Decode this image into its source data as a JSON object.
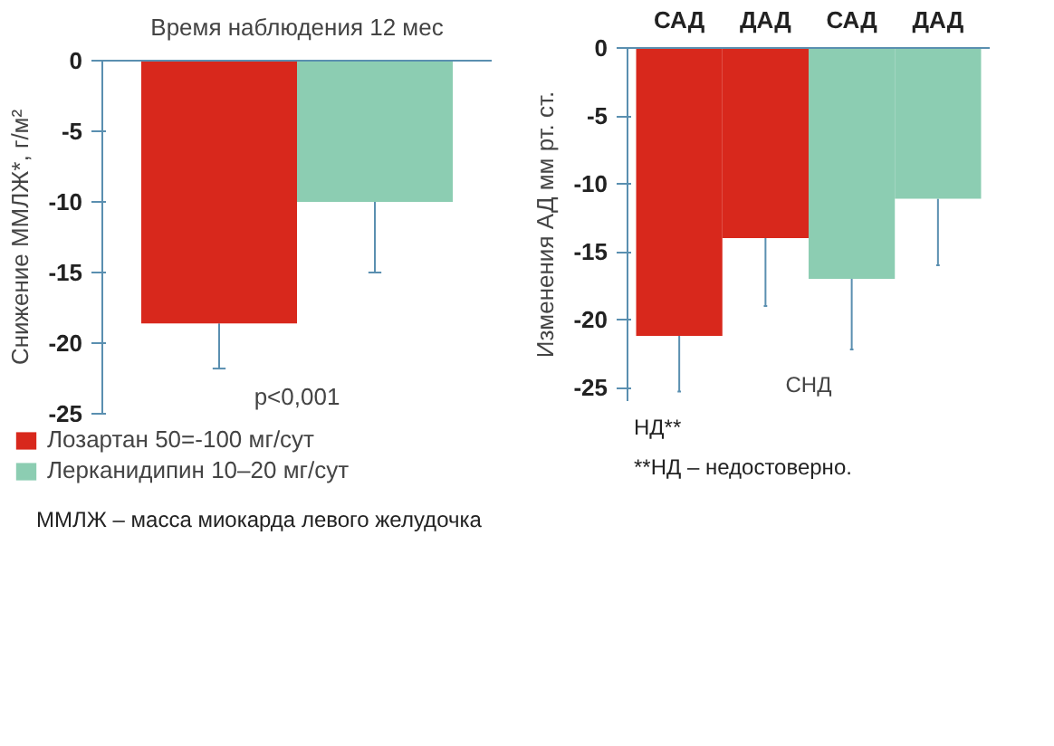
{
  "chart_data": [
    {
      "type": "bar",
      "title": "Время наблюдения 12 мес",
      "ylabel": "Снижение ММЛЖ*, г/м²",
      "categories": [
        null
      ],
      "series": [
        {
          "name": "Лозартан 50=-100 мг/сут",
          "color": "#d8281c",
          "values": [
            -18.6
          ],
          "errors": [
            [
              -21.8,
              -18.6
            ]
          ]
        },
        {
          "name": "Лерканидипин 10–20 мг/сут",
          "color": "#8ccdb2",
          "values": [
            -10
          ],
          "errors": [
            [
              -15,
              -10
            ]
          ]
        }
      ],
      "ylim": [
        -25,
        0
      ],
      "yticks": [
        -25,
        -20,
        -15,
        -10,
        -5,
        0
      ],
      "tick_labels": "y",
      "grid": false,
      "legend": "bottom",
      "annotations": [
        "p<0,001",
        "ММЛЖ – масса миокарда левого желудочка"
      ]
    },
    {
      "type": "bar",
      "ylabel": "Изменения АД мм рт. ст.",
      "categories": [
        "САД",
        "ДАД",
        "САД",
        "ДАД"
      ],
      "series": [
        {
          "color": "#d8281c",
          "values": [
            -21.2,
            -14,
            null,
            null
          ],
          "errors": [
            [
              -25.3,
              -21.2
            ],
            [
              -19,
              -14
            ],
            null,
            null
          ]
        },
        {
          "color": "#8ccdb2",
          "values": [
            null,
            null,
            -17,
            -11.1
          ],
          "errors": [
            null,
            null,
            [
              -22.2,
              -17
            ],
            [
              -16,
              -11.1
            ]
          ]
        }
      ],
      "ylim": [
        -26,
        0
      ],
      "yticks": [
        -25,
        -20,
        -15,
        -10,
        -5,
        0
      ],
      "grid": false,
      "annotations": [
        "СНД",
        "НД**",
        "**НД – недостоверно."
      ]
    }
  ]
}
